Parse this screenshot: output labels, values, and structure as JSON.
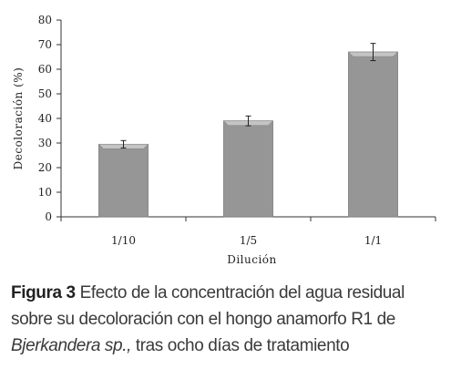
{
  "chart_data": {
    "type": "bar",
    "categories": [
      "1/10",
      "1/5",
      "1/1"
    ],
    "values": [
      29.5,
      39,
      67
    ],
    "errors": [
      1.5,
      2,
      3.5
    ],
    "xlabel": "Dilución",
    "ylabel": "Decoloración (%)",
    "ylim": [
      0,
      80
    ],
    "yticks": [
      0,
      10,
      20,
      30,
      40,
      50,
      60,
      70,
      80
    ],
    "grid": false,
    "bar_color": "#969696"
  },
  "caption": {
    "label": "Figura 3",
    "text_line1": " Efecto de la concentración del agua residual",
    "text_line2": "sobre su decoloración con el hongo anamorfo R1 de",
    "species": "Bjerkandera sp.,",
    "text_line3": " tras ocho días de tratamiento"
  }
}
